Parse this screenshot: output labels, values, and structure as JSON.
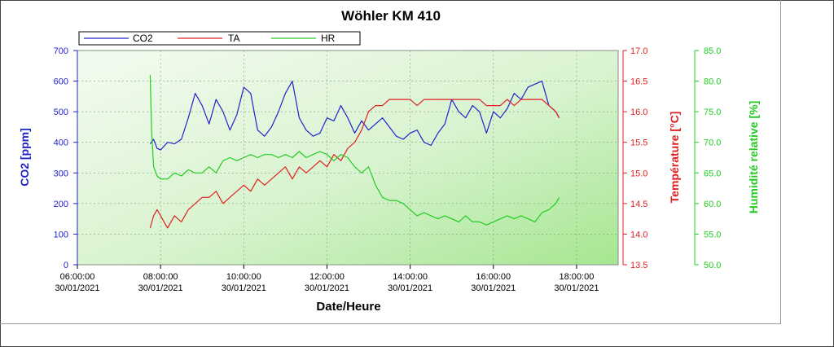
{
  "chart_data": {
    "type": "line",
    "title": "Wöhler KM 410",
    "xlabel": "Date/Heure",
    "x_range": [
      "30/01/2021 06:00:00",
      "30/01/2021 19:00:00"
    ],
    "x_ticks": [
      {
        "time": "06:00:00",
        "date": "30/01/2021"
      },
      {
        "time": "08:00:00",
        "date": "30/01/2021"
      },
      {
        "time": "10:00:00",
        "date": "30/01/2021"
      },
      {
        "time": "12:00:00",
        "date": "30/01/2021"
      },
      {
        "time": "14:00:00",
        "date": "30/01/2021"
      },
      {
        "time": "16:00:00",
        "date": "30/01/2021"
      },
      {
        "time": "18:00:00",
        "date": "30/01/2021"
      }
    ],
    "axes": {
      "co2": {
        "label": "CO2 [ppm]",
        "range": [
          0,
          700
        ],
        "ticks": [
          "0",
          "100",
          "200",
          "300",
          "400",
          "500",
          "600",
          "700"
        ],
        "color": "#2222cc"
      },
      "ta": {
        "label": "Température [°C]",
        "range": [
          13.5,
          17.0
        ],
        "ticks": [
          "13.5",
          "14.0",
          "14.5",
          "15.0",
          "15.5",
          "16.0",
          "16.5",
          "17.0"
        ],
        "color": "#e02020"
      },
      "hr": {
        "label": "Humidité relative [%]",
        "range": [
          50.0,
          85.0
        ],
        "ticks": [
          "50.0",
          "55.0",
          "60.0",
          "65.0",
          "70.0",
          "75.0",
          "80.0",
          "85.0"
        ],
        "color": "#22cc22"
      }
    },
    "legend": {
      "position": "top-left",
      "entries": [
        "CO2",
        "TA",
        "HR"
      ]
    },
    "grid": true,
    "series": [
      {
        "name": "CO2",
        "axis": "co2",
        "color": "#2222cc",
        "x": [
          "07:45",
          "07:50",
          "07:55",
          "08:00",
          "08:10",
          "08:20",
          "08:30",
          "08:40",
          "08:50",
          "09:00",
          "09:10",
          "09:20",
          "09:30",
          "09:40",
          "09:50",
          "10:00",
          "10:10",
          "10:20",
          "10:30",
          "10:40",
          "10:50",
          "11:00",
          "11:10",
          "11:20",
          "11:30",
          "11:40",
          "11:50",
          "12:00",
          "12:10",
          "12:20",
          "12:30",
          "12:40",
          "12:50",
          "13:00",
          "13:10",
          "13:20",
          "13:30",
          "13:40",
          "13:50",
          "14:00",
          "14:10",
          "14:20",
          "14:30",
          "14:40",
          "14:50",
          "15:00",
          "15:10",
          "15:20",
          "15:30",
          "15:40",
          "15:50",
          "16:00",
          "16:10",
          "16:20",
          "16:30",
          "16:40",
          "16:50",
          "17:00",
          "17:10",
          "17:20",
          "17:30",
          "17:35"
        ],
        "y": [
          395,
          410,
          380,
          375,
          400,
          395,
          410,
          480,
          560,
          520,
          460,
          540,
          500,
          440,
          490,
          580,
          560,
          440,
          420,
          450,
          500,
          560,
          600,
          480,
          440,
          420,
          430,
          480,
          470,
          520,
          480,
          430,
          470,
          440,
          460,
          480,
          450,
          420,
          410,
          430,
          440,
          400,
          390,
          430,
          460,
          540,
          500,
          480,
          520,
          500,
          430,
          500,
          480,
          510,
          560,
          540,
          580,
          590,
          600,
          520,
          500,
          480
        ]
      },
      {
        "name": "TA",
        "axis": "ta",
        "color": "#e02020",
        "x": [
          "07:45",
          "07:50",
          "07:55",
          "08:00",
          "08:10",
          "08:20",
          "08:30",
          "08:40",
          "08:50",
          "09:00",
          "09:10",
          "09:20",
          "09:30",
          "09:40",
          "09:50",
          "10:00",
          "10:10",
          "10:20",
          "10:30",
          "10:40",
          "10:50",
          "11:00",
          "11:10",
          "11:20",
          "11:30",
          "11:40",
          "11:50",
          "12:00",
          "12:10",
          "12:20",
          "12:30",
          "12:40",
          "12:50",
          "13:00",
          "13:10",
          "13:20",
          "13:30",
          "13:40",
          "13:50",
          "14:00",
          "14:10",
          "14:20",
          "14:30",
          "14:40",
          "14:50",
          "15:00",
          "15:10",
          "15:20",
          "15:30",
          "15:40",
          "15:50",
          "16:00",
          "16:10",
          "16:20",
          "16:30",
          "16:40",
          "16:50",
          "17:00",
          "17:10",
          "17:20",
          "17:30",
          "17:35"
        ],
        "y": [
          14.1,
          14.3,
          14.4,
          14.3,
          14.1,
          14.3,
          14.2,
          14.4,
          14.5,
          14.6,
          14.6,
          14.7,
          14.5,
          14.6,
          14.7,
          14.8,
          14.7,
          14.9,
          14.8,
          14.9,
          15.0,
          15.1,
          14.9,
          15.1,
          15.0,
          15.1,
          15.2,
          15.1,
          15.3,
          15.2,
          15.4,
          15.5,
          15.7,
          16.0,
          16.1,
          16.1,
          16.2,
          16.2,
          16.2,
          16.2,
          16.1,
          16.2,
          16.2,
          16.2,
          16.2,
          16.2,
          16.2,
          16.2,
          16.2,
          16.2,
          16.1,
          16.1,
          16.1,
          16.2,
          16.1,
          16.2,
          16.2,
          16.2,
          16.2,
          16.1,
          16.0,
          15.9
        ]
      },
      {
        "name": "HR",
        "axis": "hr",
        "color": "#22cc22",
        "x": [
          "07:45",
          "07:47",
          "07:50",
          "07:55",
          "08:00",
          "08:10",
          "08:20",
          "08:30",
          "08:40",
          "08:50",
          "09:00",
          "09:10",
          "09:20",
          "09:30",
          "09:40",
          "09:50",
          "10:00",
          "10:10",
          "10:20",
          "10:30",
          "10:40",
          "10:50",
          "11:00",
          "11:10",
          "11:20",
          "11:30",
          "11:40",
          "11:50",
          "12:00",
          "12:10",
          "12:20",
          "12:30",
          "12:40",
          "12:50",
          "13:00",
          "13:10",
          "13:20",
          "13:30",
          "13:40",
          "13:50",
          "14:00",
          "14:10",
          "14:20",
          "14:30",
          "14:40",
          "14:50",
          "15:00",
          "15:10",
          "15:20",
          "15:30",
          "15:40",
          "15:50",
          "16:00",
          "16:10",
          "16:20",
          "16:30",
          "16:40",
          "16:50",
          "17:00",
          "17:10",
          "17:20",
          "17:30",
          "17:35"
        ],
        "y": [
          81,
          72,
          66,
          64.5,
          64,
          64,
          65,
          64.5,
          65.5,
          65,
          65,
          66,
          65,
          67,
          67.5,
          67,
          67.5,
          68,
          67.5,
          68,
          68,
          67.5,
          68,
          67.5,
          68.5,
          67.5,
          68,
          68.5,
          68,
          67,
          68,
          67.5,
          66,
          65,
          66,
          63,
          61,
          60.5,
          60.5,
          60,
          59,
          58,
          58.5,
          58,
          57.5,
          58,
          57.5,
          57,
          58,
          57,
          57,
          56.5,
          57,
          57.5,
          58,
          57.5,
          58,
          57.5,
          57,
          58.5,
          59,
          60,
          61
        ]
      }
    ]
  }
}
